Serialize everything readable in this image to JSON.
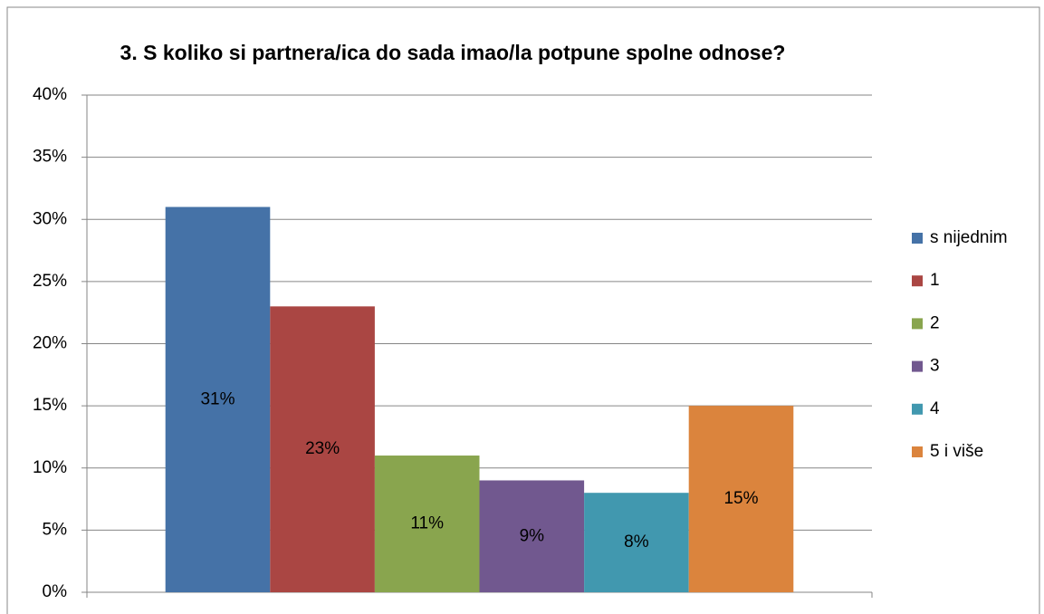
{
  "chart_data": {
    "type": "bar",
    "title": "3. S koliko si partnera/ica do sada imao/la potpune spolne odnose?",
    "categories": [
      null
    ],
    "series": [
      {
        "name": "s nijednim",
        "color": "#4572a7",
        "values": [
          31
        ],
        "value_labels": [
          "31%"
        ]
      },
      {
        "name": "1",
        "color": "#aa4643",
        "values": [
          23
        ],
        "value_labels": [
          "23%"
        ]
      },
      {
        "name": "2",
        "color": "#89a54e",
        "values": [
          11
        ],
        "value_labels": [
          "11%"
        ]
      },
      {
        "name": "3",
        "color": "#71588f",
        "values": [
          9
        ],
        "value_labels": [
          "9%"
        ]
      },
      {
        "name": "4",
        "color": "#4198af",
        "values": [
          8
        ],
        "value_labels": [
          "8%"
        ]
      },
      {
        "name": "5 i više",
        "color": "#db843d",
        "values": [
          15
        ],
        "value_labels": [
          "15%"
        ]
      }
    ],
    "ylim": [
      0,
      40
    ],
    "yticks": [
      {
        "value": 0,
        "label": "0%"
      },
      {
        "value": 5,
        "label": "5%"
      },
      {
        "value": 10,
        "label": "10%"
      },
      {
        "value": 15,
        "label": "15%"
      },
      {
        "value": 20,
        "label": "20%"
      },
      {
        "value": 25,
        "label": "25%"
      },
      {
        "value": 30,
        "label": "30%"
      },
      {
        "value": 35,
        "label": "35%"
      },
      {
        "value": 40,
        "label": "40%"
      }
    ],
    "grid": true,
    "legend": "right"
  }
}
